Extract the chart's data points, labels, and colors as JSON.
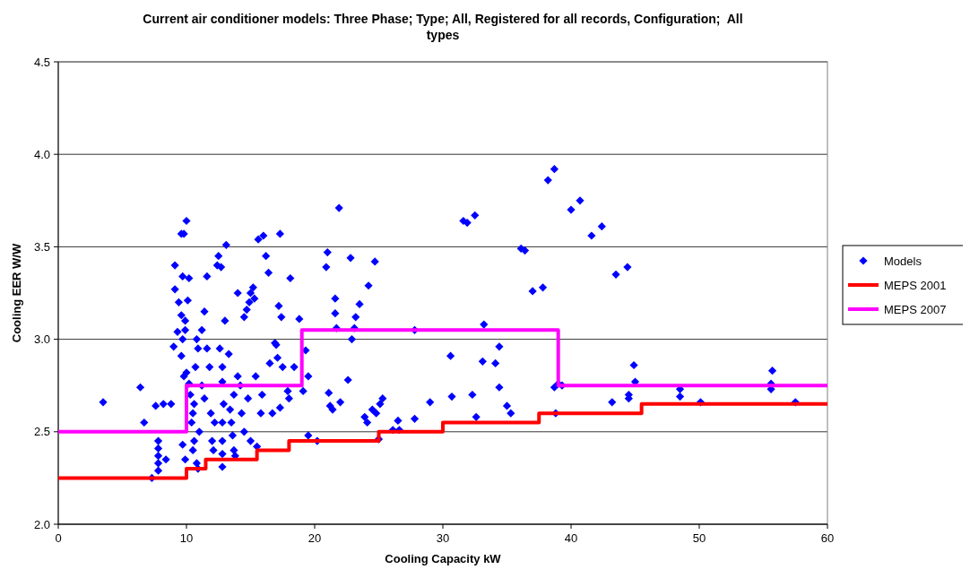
{
  "chart_data": {
    "type": "scatter",
    "title": "Current air conditioner models: Three Phase; Type; All, Registered for all records, Configuration;  All types",
    "xlabel": "Cooling Capacity kW",
    "ylabel": "Cooling EER W/W",
    "xlim": [
      0,
      60
    ],
    "xticks": [
      0,
      10,
      20,
      30,
      40,
      50,
      60
    ],
    "ylim": [
      2,
      4.5
    ],
    "yticks": [
      {
        "value": 2,
        "label": "2.0"
      },
      {
        "value": 2.5,
        "label": "2.5"
      },
      {
        "value": 3,
        "label": "3.0"
      },
      {
        "value": 3.5,
        "label": "3.5"
      },
      {
        "value": 4,
        "label": "4.0"
      },
      {
        "value": 4.5,
        "label": "4.5"
      }
    ],
    "grid": "y",
    "legend": "right",
    "series": [
      {
        "name": "Models",
        "marker": "diamond",
        "color": "#0000ff",
        "x": [
          3.5,
          6.4,
          6.7,
          7.3,
          7.6,
          7.8,
          7.8,
          7.8,
          7.8,
          7.8,
          8.4,
          8.2,
          8.8,
          9.1,
          9.1,
          9.3,
          9.0,
          9.4,
          9.6,
          9.6,
          9.8,
          10.0,
          9.7,
          9.7,
          9.9,
          9.8,
          9.9,
          10.1,
          10.2,
          9.6,
          10.0,
          9.7,
          9.9,
          10.3,
          10.2,
          10.4,
          10.5,
          10.6,
          10.6,
          10.5,
          10.7,
          10.8,
          10.9,
          10.8,
          10.9,
          11.0,
          11.2,
          11.4,
          11.2,
          11.4,
          11.6,
          11.6,
          11.8,
          11.9,
          12.0,
          12.1,
          12.2,
          12.4,
          12.5,
          12.7,
          12.6,
          12.8,
          12.8,
          12.9,
          12.8,
          12.8,
          12.8,
          12.8,
          13.0,
          13.1,
          13.3,
          13.4,
          13.5,
          13.6,
          13.7,
          13.8,
          13.7,
          14.0,
          14.0,
          14.2,
          14.3,
          14.5,
          14.5,
          14.7,
          14.8,
          14.9,
          15.0,
          15.0,
          15.2,
          15.3,
          15.4,
          15.5,
          15.6,
          15.8,
          15.9,
          16.0,
          16.2,
          16.4,
          16.5,
          16.7,
          16.9,
          17.0,
          17.1,
          17.3,
          17.2,
          17.4,
          17.3,
          17.5,
          17.9,
          18.0,
          18.1,
          18.4,
          18.8,
          19.1,
          19.3,
          19.5,
          19.5,
          20.2,
          20.9,
          21.0,
          21.1,
          21.2,
          21.4,
          21.6,
          21.6,
          21.7,
          21.9,
          22.0,
          22.6,
          22.8,
          22.9,
          23.1,
          23.2,
          23.5,
          23.9,
          24.1,
          24.2,
          24.5,
          24.7,
          24.8,
          25.0,
          25.1,
          25.3,
          26.1,
          26.5,
          26.6,
          27.8,
          27.8,
          29.0,
          30.6,
          30.7,
          31.6,
          31.9,
          32.3,
          32.5,
          32.6,
          33.1,
          33.2,
          34.1,
          34.4,
          34.4,
          35.0,
          35.3,
          36.1,
          36.4,
          37.0,
          37.8,
          38.2,
          38.7,
          38.7,
          38.8,
          39.0,
          39.3,
          40.0,
          40.7,
          41.6,
          42.4,
          43.2,
          43.5,
          44.4,
          44.5,
          44.5,
          44.9,
          45.0,
          48.5,
          48.5,
          50.1,
          55.7,
          55.6,
          55.6,
          57.5
        ],
        "values": [
          2.66,
          2.74,
          2.55,
          2.25,
          2.64,
          2.29,
          2.33,
          2.37,
          2.41,
          2.45,
          2.35,
          2.65,
          2.65,
          3.27,
          3.4,
          3.04,
          2.96,
          3.2,
          3.13,
          3.57,
          3.57,
          3.64,
          3.34,
          3.0,
          3.05,
          2.8,
          3.1,
          3.21,
          3.33,
          2.91,
          2.82,
          2.43,
          2.35,
          2.7,
          2.76,
          2.55,
          2.6,
          2.65,
          2.45,
          2.4,
          2.85,
          3.0,
          2.95,
          2.33,
          2.3,
          2.5,
          3.05,
          3.15,
          2.75,
          2.68,
          3.34,
          2.95,
          2.85,
          2.6,
          2.45,
          2.4,
          2.55,
          3.4,
          3.45,
          3.39,
          2.95,
          2.85,
          2.77,
          2.65,
          2.55,
          2.45,
          2.38,
          2.31,
          3.1,
          3.51,
          2.92,
          2.62,
          2.55,
          2.48,
          2.4,
          2.37,
          2.7,
          3.25,
          2.8,
          2.75,
          2.6,
          3.12,
          2.5,
          3.16,
          2.68,
          3.2,
          3.25,
          2.45,
          3.28,
          3.22,
          2.8,
          2.42,
          3.54,
          2.6,
          2.7,
          3.56,
          3.45,
          3.36,
          2.87,
          2.6,
          2.98,
          2.97,
          2.9,
          3.57,
          3.18,
          3.12,
          2.63,
          2.85,
          2.72,
          2.68,
          3.33,
          2.85,
          3.11,
          2.72,
          2.94,
          2.8,
          2.48,
          2.45,
          3.39,
          3.47,
          2.71,
          2.64,
          2.62,
          3.14,
          3.22,
          3.06,
          3.71,
          2.66,
          2.78,
          3.44,
          3.0,
          3.06,
          3.12,
          3.19,
          2.58,
          2.55,
          3.29,
          2.62,
          3.42,
          2.6,
          2.46,
          2.65,
          2.68,
          2.51,
          2.56,
          2.51,
          3.05,
          2.57,
          2.66,
          2.91,
          2.69,
          3.64,
          3.63,
          2.7,
          3.67,
          2.58,
          2.88,
          3.08,
          2.87,
          2.74,
          2.96,
          2.64,
          2.6,
          3.49,
          3.48,
          3.26,
          3.28,
          3.86,
          3.92,
          2.74,
          2.6,
          2.76,
          2.75,
          3.7,
          3.75,
          3.56,
          3.61,
          2.66,
          3.35,
          3.39,
          2.68,
          2.7,
          2.86,
          2.77,
          2.69,
          2.73,
          2.66,
          2.83,
          2.76,
          2.73,
          2.66
        ]
      },
      {
        "name": "MEPS 2001",
        "type": "step",
        "marker": "none",
        "color": "#ff0000",
        "x": [
          0,
          10,
          11.5,
          15.5,
          18,
          25,
          30,
          37.5,
          45.5,
          60
        ],
        "values": [
          2.25,
          2.3,
          2.35,
          2.4,
          2.45,
          2.5,
          2.55,
          2.6,
          2.65,
          2.65
        ]
      },
      {
        "name": "MEPS 2007",
        "type": "step",
        "marker": "none",
        "color": "#ff00ff",
        "x": [
          0,
          10,
          19,
          39,
          60
        ],
        "values": [
          2.5,
          2.75,
          3.05,
          2.75,
          2.75
        ]
      }
    ]
  }
}
